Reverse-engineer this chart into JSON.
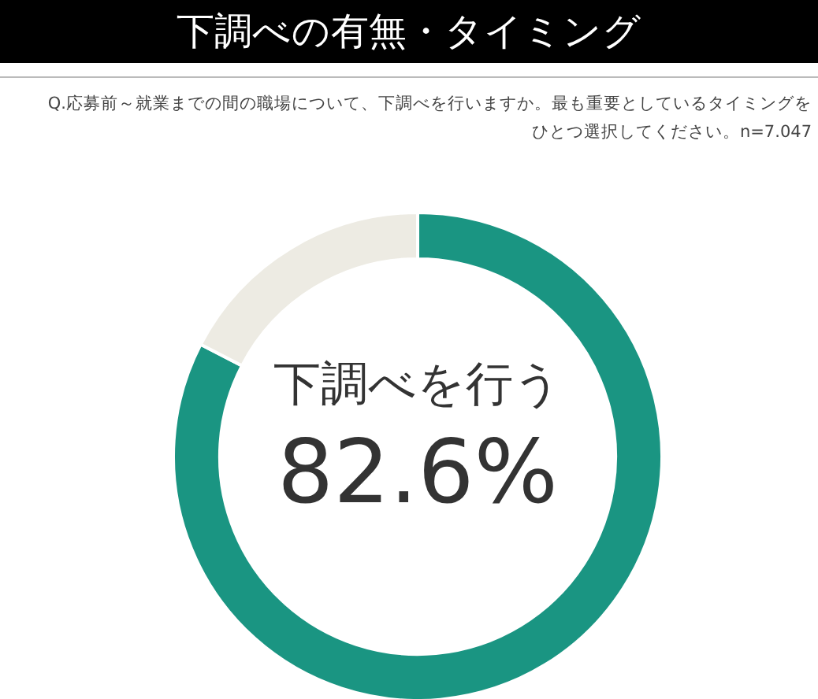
{
  "chart_data": {
    "type": "donut",
    "title": "下調べの有無・タイミング",
    "subtitle": "Q.応募前～就業までの間の職場について、下調べを行いますか。最も重要としているタイミングをひとつ選択してください。n=7.047",
    "categories": [
      "下調べを行う",
      null
    ],
    "values": [
      82.6,
      17.4
    ],
    "colors": [
      "#1a9582",
      "#edebe3"
    ],
    "value_labels": [
      "82.6%",
      null
    ]
  }
}
